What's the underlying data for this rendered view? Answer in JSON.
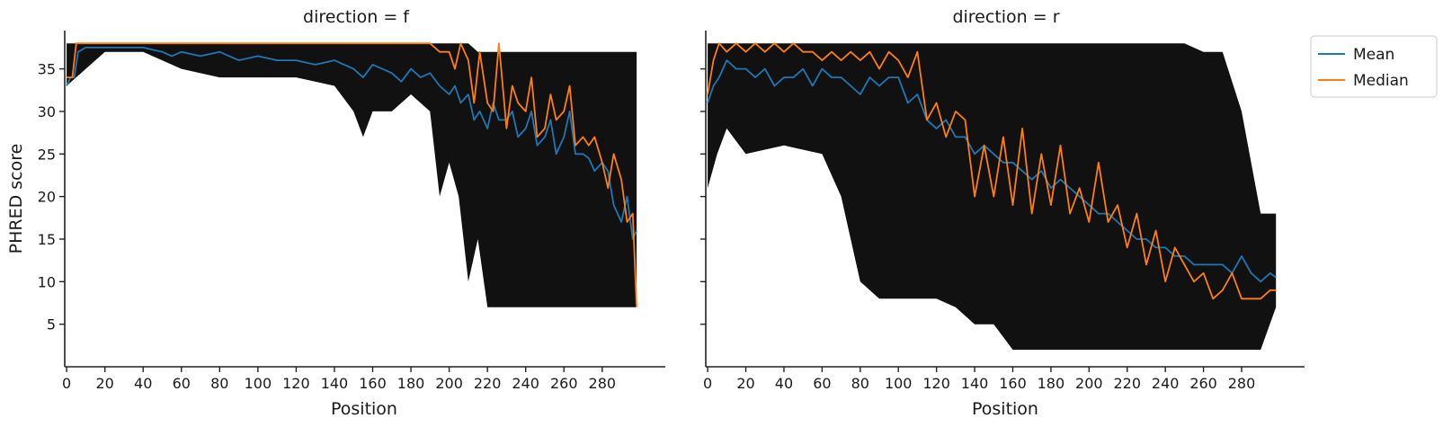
{
  "chart_data": [
    {
      "type": "line",
      "title": "direction = f",
      "xlabel": "Position",
      "ylabel": "PHRED score",
      "xlim": [
        -1,
        313
      ],
      "ylim": [
        0,
        39.5
      ],
      "x_ticks": [
        0,
        20,
        40,
        60,
        80,
        100,
        120,
        140,
        160,
        180,
        200,
        220,
        240,
        260,
        280
      ],
      "y_ticks": [
        5,
        10,
        15,
        20,
        25,
        30,
        35
      ],
      "x_tick_labels": [
        "0",
        "20",
        "40",
        "60",
        "80",
        "100",
        "120",
        "140",
        "160",
        "180",
        "200",
        "220",
        "240",
        "260",
        "280"
      ],
      "y_tick_labels": [
        "5",
        "10",
        "15",
        "20",
        "25",
        "30",
        "35"
      ],
      "grid": false,
      "range_band": {
        "color": "#111111",
        "x": [
          0,
          20,
          40,
          60,
          80,
          100,
          120,
          140,
          150,
          155,
          160,
          170,
          180,
          190,
          195,
          200,
          205,
          210,
          215,
          220,
          225,
          230,
          240,
          250,
          260,
          270,
          280,
          285,
          290,
          298
        ],
        "low": [
          33,
          37,
          37,
          35,
          34,
          34,
          34,
          33,
          30,
          27,
          30,
          30,
          32,
          30,
          20,
          24,
          20,
          10,
          15,
          7,
          7,
          7,
          7,
          7,
          7,
          7,
          7,
          7,
          7,
          7
        ],
        "high": [
          38,
          38,
          38,
          38,
          38,
          38,
          38,
          38,
          38,
          38,
          38,
          38,
          38,
          38,
          38,
          38,
          38,
          38,
          37,
          37,
          37,
          37,
          37,
          37,
          37,
          37,
          37,
          37,
          37,
          37
        ]
      },
      "series": [
        {
          "name": "Mean",
          "color": "#1f77b4",
          "x": [
            0,
            2,
            4,
            6,
            10,
            20,
            30,
            40,
            50,
            55,
            60,
            70,
            80,
            90,
            100,
            110,
            120,
            130,
            140,
            150,
            155,
            160,
            165,
            170,
            175,
            180,
            185,
            190,
            195,
            200,
            203,
            206,
            210,
            213,
            216,
            220,
            223,
            226,
            230,
            233,
            236,
            240,
            243,
            246,
            250,
            253,
            256,
            260,
            263,
            266,
            270,
            273,
            276,
            280,
            283,
            286,
            290,
            293,
            296,
            298
          ],
          "y": [
            33,
            34,
            34,
            37,
            37.5,
            37.5,
            37.5,
            37.5,
            37,
            36.5,
            37,
            36.5,
            37,
            36,
            36.5,
            36,
            36,
            35.5,
            36,
            35,
            34,
            35.5,
            35,
            34.5,
            33.5,
            35,
            34,
            34.5,
            33,
            32,
            33,
            31,
            32,
            29,
            30,
            28,
            31,
            29,
            29,
            30,
            27,
            28,
            30,
            26,
            27,
            29,
            25,
            27,
            30,
            25,
            25,
            24.5,
            23,
            24,
            23,
            19,
            17,
            20,
            15,
            16
          ]
        },
        {
          "name": "Median",
          "color": "#ff7f0e",
          "x": [
            0,
            3,
            5,
            10,
            20,
            30,
            40,
            50,
            60,
            70,
            80,
            90,
            100,
            110,
            120,
            130,
            140,
            150,
            160,
            170,
            180,
            185,
            190,
            195,
            200,
            203,
            206,
            210,
            213,
            216,
            220,
            223,
            226,
            230,
            233,
            236,
            240,
            243,
            246,
            250,
            253,
            256,
            260,
            263,
            266,
            270,
            273,
            276,
            280,
            283,
            286,
            290,
            293,
            296,
            298
          ],
          "y": [
            34,
            34,
            38,
            38,
            38,
            38,
            38,
            38,
            38,
            38,
            38,
            38,
            38,
            38,
            38,
            38,
            38,
            38,
            38,
            38,
            38,
            38,
            38,
            37,
            37,
            35,
            38,
            36,
            31,
            37,
            31,
            30,
            38,
            28,
            33,
            31,
            30,
            34,
            27,
            28,
            32,
            29,
            30,
            33,
            26,
            27,
            26,
            27,
            24,
            21,
            25,
            22,
            17,
            18,
            7
          ]
        }
      ]
    },
    {
      "type": "line",
      "title": "direction = r",
      "xlabel": "Position",
      "ylabel": "",
      "xlim": [
        -1,
        313
      ],
      "ylim": [
        0,
        39.5
      ],
      "x_ticks": [
        0,
        20,
        40,
        60,
        80,
        100,
        120,
        140,
        160,
        180,
        200,
        220,
        240,
        260,
        280
      ],
      "y_ticks": [
        5,
        10,
        15,
        20,
        25,
        30,
        35
      ],
      "x_tick_labels": [
        "0",
        "20",
        "40",
        "60",
        "80",
        "100",
        "120",
        "140",
        "160",
        "180",
        "200",
        "220",
        "240",
        "260",
        "280"
      ],
      "grid": false,
      "range_band": {
        "color": "#111111",
        "x": [
          0,
          5,
          10,
          20,
          40,
          60,
          70,
          75,
          80,
          90,
          100,
          110,
          120,
          130,
          140,
          150,
          160,
          170,
          180,
          200,
          220,
          240,
          250,
          260,
          270,
          280,
          290,
          298
        ],
        "low": [
          21,
          25,
          28,
          25,
          26,
          25,
          20,
          15,
          10,
          8,
          8,
          8,
          8,
          7,
          5,
          5,
          2,
          2,
          2,
          2,
          2,
          2,
          2,
          2,
          2,
          2,
          2,
          7
        ],
        "high": [
          38,
          38,
          38,
          38,
          38,
          38,
          38,
          38,
          38,
          38,
          38,
          38,
          38,
          38,
          38,
          38,
          38,
          38,
          38,
          38,
          38,
          38,
          38,
          37,
          37,
          30,
          18,
          18
        ]
      },
      "series": [
        {
          "name": "Mean",
          "color": "#1f77b4",
          "x": [
            0,
            3,
            6,
            10,
            15,
            20,
            25,
            30,
            35,
            40,
            45,
            50,
            55,
            60,
            65,
            70,
            75,
            80,
            85,
            90,
            95,
            100,
            105,
            110,
            115,
            120,
            125,
            130,
            135,
            140,
            145,
            150,
            155,
            160,
            165,
            170,
            175,
            180,
            185,
            190,
            195,
            200,
            205,
            210,
            215,
            220,
            225,
            230,
            235,
            240,
            245,
            250,
            255,
            260,
            265,
            270,
            275,
            280,
            285,
            290,
            295,
            298
          ],
          "y": [
            31,
            33,
            34,
            36,
            35,
            35,
            34,
            35,
            33,
            34,
            34,
            35,
            33,
            35,
            34,
            34,
            33,
            32,
            34,
            33,
            34,
            34,
            31,
            32,
            29,
            28,
            29,
            27,
            27,
            25,
            26,
            25,
            24,
            24,
            23,
            22,
            23,
            21,
            22,
            21,
            20,
            19,
            18,
            18,
            17,
            16,
            15,
            15,
            14,
            14,
            13,
            13,
            12,
            12,
            12,
            12,
            11,
            13,
            11,
            10,
            11,
            10.5
          ]
        },
        {
          "name": "Median",
          "color": "#ff7f0e",
          "x": [
            0,
            3,
            6,
            10,
            15,
            20,
            25,
            30,
            35,
            40,
            45,
            50,
            55,
            60,
            65,
            70,
            75,
            80,
            85,
            90,
            95,
            100,
            105,
            110,
            115,
            120,
            125,
            130,
            135,
            140,
            145,
            150,
            155,
            160,
            165,
            170,
            175,
            180,
            185,
            190,
            195,
            200,
            205,
            210,
            215,
            220,
            225,
            230,
            235,
            240,
            245,
            250,
            255,
            260,
            265,
            270,
            275,
            280,
            285,
            290,
            295,
            298
          ],
          "y": [
            32,
            36,
            38,
            37,
            38,
            37,
            38,
            37,
            38,
            37,
            38,
            37,
            37,
            36,
            37,
            36,
            37,
            36,
            37,
            35,
            37,
            36,
            34,
            37,
            29,
            31,
            27,
            30,
            29,
            20,
            26,
            20,
            27,
            19,
            28,
            18,
            25,
            19,
            26,
            18,
            21,
            17,
            24,
            17,
            19,
            14,
            18,
            12,
            16,
            10,
            14,
            12,
            10,
            11,
            8,
            9,
            11,
            8,
            8,
            8,
            9,
            9
          ]
        }
      ]
    }
  ],
  "legend": {
    "placement": "upper-right-outside",
    "items": [
      {
        "label": "Mean",
        "color": "#1f77b4"
      },
      {
        "label": "Median",
        "color": "#ff7f0e"
      }
    ]
  }
}
